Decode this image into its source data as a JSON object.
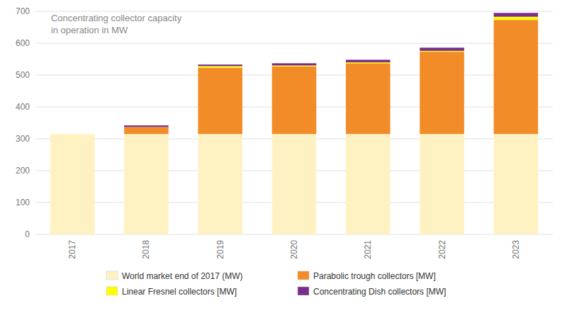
{
  "chart_data": {
    "type": "bar",
    "stacked": true,
    "title": "Concentrating collector capacity",
    "subtitle": "in operation in MW",
    "categories": [
      "2017",
      "2018",
      "2019",
      "2020",
      "2021",
      "2022",
      "2023"
    ],
    "series": [
      {
        "name": "World market end of 2017 (MW)",
        "color": "#FFF2C2",
        "values": [
          315,
          315,
          315,
          315,
          315,
          315,
          315
        ]
      },
      {
        "name": "Parabolic trough collectors [MW]",
        "color": "#F28C28",
        "values": [
          0,
          22,
          208,
          212,
          222,
          258,
          358
        ]
      },
      {
        "name": "Linear Fresnel collectors [MW]",
        "color": "#FFFF00",
        "values": [
          0,
          0,
          5,
          3,
          3,
          3,
          10
        ]
      },
      {
        "name": "Concentrating Dish collectors [MW]",
        "color": "#7B2D8B",
        "values": [
          0,
          5,
          5,
          7,
          8,
          10,
          12
        ]
      }
    ],
    "ylim": [
      0,
      700
    ],
    "yticks": [
      0,
      100,
      200,
      300,
      400,
      500,
      600,
      700
    ],
    "grid": true,
    "legend": "bottom"
  }
}
